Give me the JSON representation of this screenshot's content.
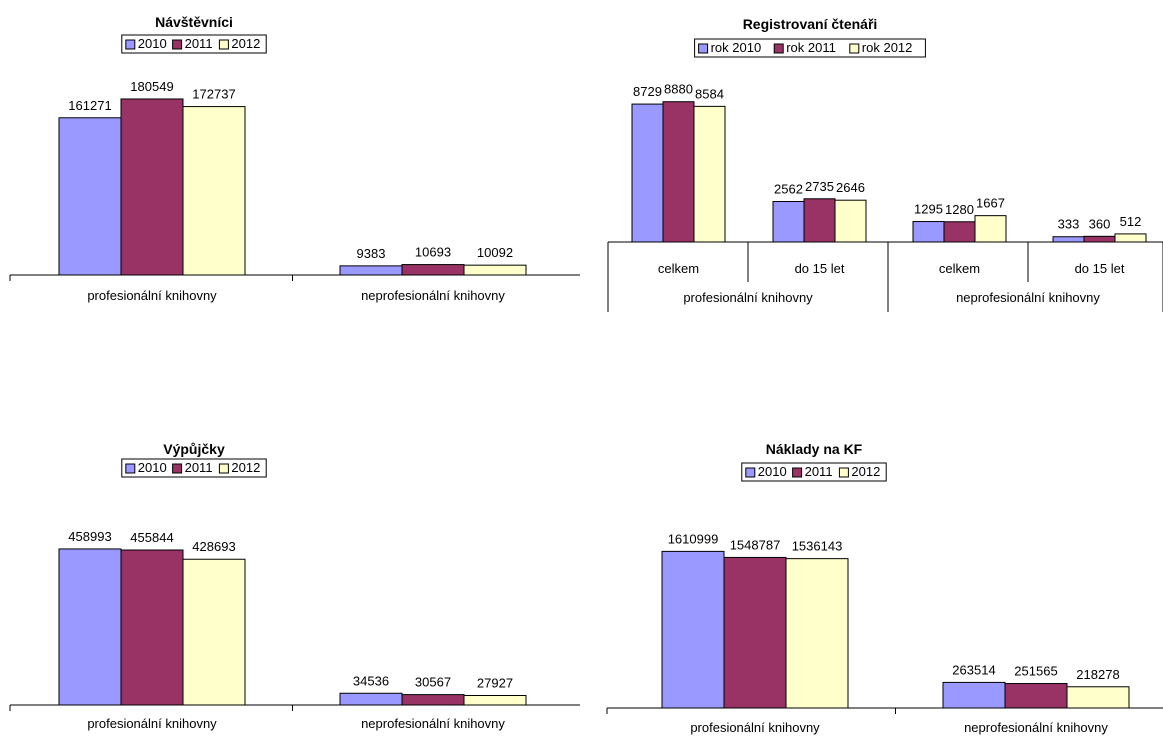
{
  "colors": {
    "c2010": "#9999FF",
    "c2011": "#993366",
    "c2012": "#FFFFCC",
    "outline": "#000000"
  },
  "chart_data": [
    {
      "type": "bar",
      "title": "Návštěvníci",
      "categories": [
        "profesionální knihovny",
        "neprofesionální knihovny"
      ],
      "series": [
        {
          "name": "2010",
          "values": [
            161271,
            9383
          ]
        },
        {
          "name": "2011",
          "values": [
            180549,
            10693
          ]
        },
        {
          "name": "2012",
          "values": [
            172737,
            10092
          ]
        }
      ],
      "ylim": [
        0,
        200000
      ],
      "legend": "top",
      "grid": false
    },
    {
      "type": "bar",
      "title": "Registrovaní čtenáři",
      "categories": [
        "celkem",
        "do 15 let",
        "celkem",
        "do 15 let"
      ],
      "groups": [
        {
          "label": "profesionální knihovny",
          "span": 2
        },
        {
          "label": "neprofesionální knihovny",
          "span": 2
        }
      ],
      "series": [
        {
          "name": "rok 2010",
          "values": [
            8729,
            2562,
            1295,
            333
          ]
        },
        {
          "name": "rok 2011",
          "values": [
            8880,
            2735,
            1280,
            360
          ]
        },
        {
          "name": "rok 2012",
          "values": [
            8584,
            2646,
            1667,
            512
          ]
        }
      ],
      "ylim": [
        0,
        10000
      ],
      "legend": "top",
      "grid": false
    },
    {
      "type": "bar",
      "title": "Výpůjčky",
      "categories": [
        "profesionální knihovny",
        "neprofesionální knihovny"
      ],
      "series": [
        {
          "name": "2010",
          "values": [
            458993,
            34536
          ]
        },
        {
          "name": "2011",
          "values": [
            455844,
            30567
          ]
        },
        {
          "name": "2012",
          "values": [
            428693,
            27927
          ]
        }
      ],
      "ylim": [
        0,
        500000
      ],
      "legend": "top",
      "grid": false
    },
    {
      "type": "bar",
      "title": "Náklady na KF",
      "categories": [
        "profesionální knihovny",
        "neprofesionální knihovny"
      ],
      "series": [
        {
          "name": "2010",
          "values": [
            1610999,
            263514
          ]
        },
        {
          "name": "2011",
          "values": [
            1548787,
            251565
          ]
        },
        {
          "name": "2012",
          "values": [
            1536143,
            218278
          ]
        }
      ],
      "ylim": [
        0,
        1800000
      ],
      "legend": "top",
      "grid": false
    }
  ]
}
